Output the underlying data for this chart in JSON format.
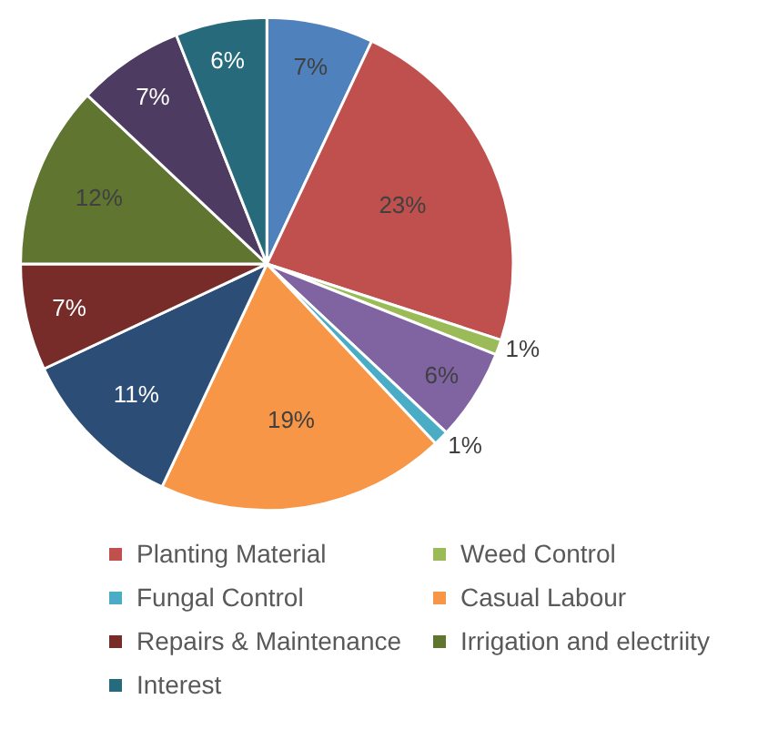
{
  "chart_data": {
    "type": "pie",
    "categories": [
      null,
      "Planting Material",
      "Weed Control",
      null,
      "Fungal Control",
      "Casual Labour",
      null,
      "Repairs & Maintenance",
      "Irrigation and electriity",
      null,
      "Interest"
    ],
    "values": [
      7,
      23,
      1,
      6,
      1,
      19,
      11,
      7,
      12,
      7,
      6
    ],
    "value_labels": [
      "7%",
      "23%",
      "1%",
      "6%",
      "1%",
      "19%",
      "11%",
      "7%",
      "12%",
      "7%",
      "6%"
    ],
    "colors": [
      "#4f81bd",
      "#c0504d",
      "#9bbb59",
      "#8064a2",
      "#4bacc6",
      "#f79646",
      "#2c4d75",
      "#772c2a",
      "#5f7530",
      "#4d3b62",
      "#276a7c"
    ],
    "legend": "bottom"
  }
}
